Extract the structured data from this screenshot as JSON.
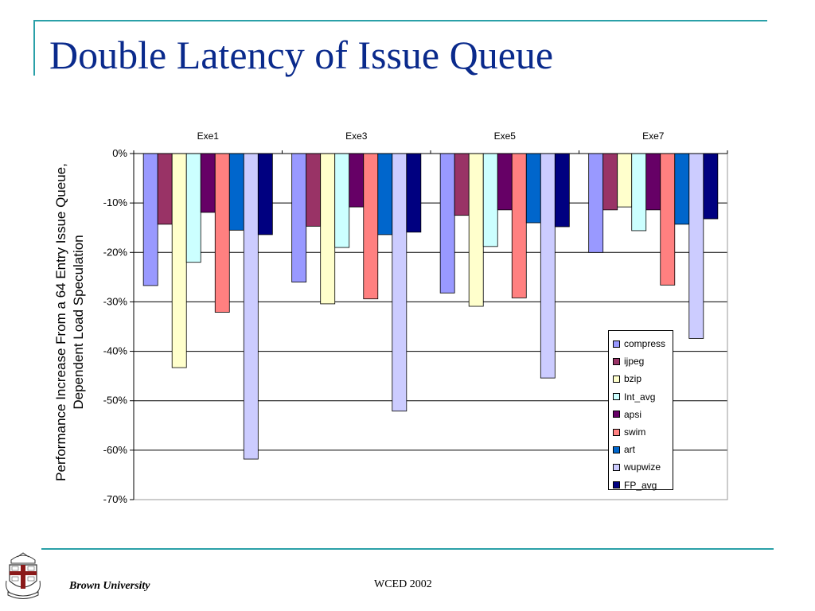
{
  "slide": {
    "title": "Double Latency of Issue Queue",
    "footer_left": "Brown University",
    "footer_center": "WCED 2002"
  },
  "chart_data": {
    "type": "bar",
    "title": "",
    "categories": [
      "Exe1",
      "Exe3",
      "Exe5",
      "Exe7"
    ],
    "xlabel": "",
    "ylabel": "Performance Increase From a 64 Entry Issue Queue, Dependent Load Speculation",
    "ylabel_lines": [
      "Performance Increase From a 64 Entry Issue Queue,",
      "Dependent Load Speculation"
    ],
    "ylim": [
      -70,
      0
    ],
    "yticks": [
      0,
      -10,
      -20,
      -30,
      -40,
      -50,
      -60,
      -70
    ],
    "ytick_labels": [
      "0%",
      "-10%",
      "-20%",
      "-30%",
      "-40%",
      "-50%",
      "-60%",
      "-70%"
    ],
    "unit": "%",
    "grid": true,
    "category_axis_position": "top",
    "legend_position": "right",
    "series": [
      {
        "name": "compress",
        "color": "#9999ff",
        "values": [
          -26.7,
          -26.0,
          -28.2,
          -20.0
        ]
      },
      {
        "name": "ijpeg",
        "color": "#993366",
        "values": [
          -14.3,
          -14.7,
          -12.5,
          -11.4
        ]
      },
      {
        "name": "bzip",
        "color": "#ffffcc",
        "values": [
          -43.3,
          -30.4,
          -30.9,
          -10.8
        ]
      },
      {
        "name": "Int_avg",
        "color": "#ccffff",
        "values": [
          -22.0,
          -19.0,
          -18.8,
          -15.6
        ]
      },
      {
        "name": "apsi",
        "color": "#660066",
        "values": [
          -11.9,
          -10.8,
          -11.4,
          -11.4
        ]
      },
      {
        "name": "swim",
        "color": "#ff8080",
        "values": [
          -32.1,
          -29.4,
          -29.2,
          -26.6
        ]
      },
      {
        "name": "art",
        "color": "#0066cc",
        "values": [
          -15.5,
          -16.4,
          -14.0,
          -14.3
        ]
      },
      {
        "name": "wupwize",
        "color": "#ccccff",
        "values": [
          -61.8,
          -52.1,
          -45.4,
          -37.4
        ]
      },
      {
        "name": "FP_avg",
        "color": "#000080",
        "values": [
          -16.4,
          -15.9,
          -14.8,
          -13.2
        ]
      }
    ]
  }
}
